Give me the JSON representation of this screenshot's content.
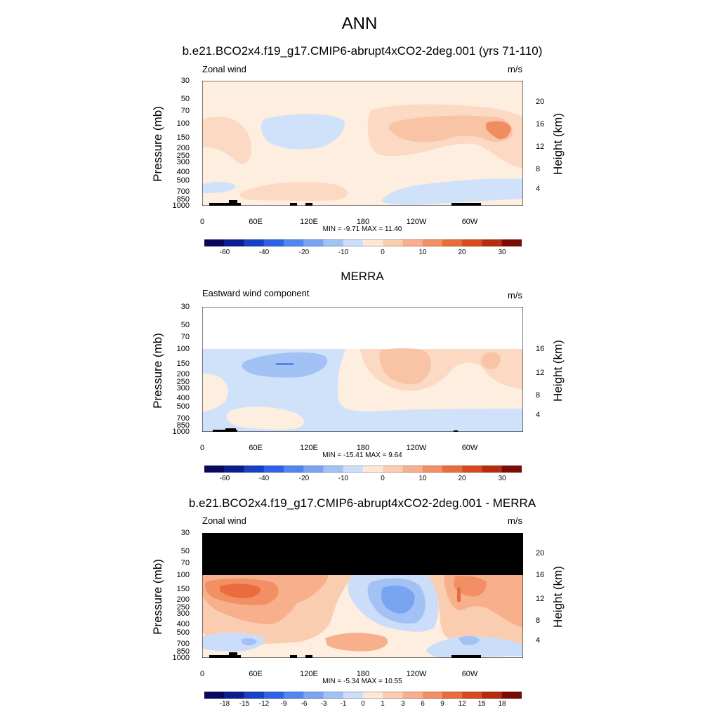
{
  "main_title": "ANN",
  "colors": {
    "levels11": [
      "#e6f0ff",
      "#cfe2f9",
      "#fdeee0",
      "#fcd9c2",
      "#f9c3a6",
      "#f5a883",
      "#f08c5f",
      "#e46c3d"
    ],
    "cb_colors": [
      "#08085e",
      "#0a1f8f",
      "#1740c2",
      "#2f62e6",
      "#4f86f0",
      "#78a4f2",
      "#a2c1f5",
      "#cbddf8",
      "#fde7d6",
      "#fbcdb0",
      "#f7b08b",
      "#f28f64",
      "#ea6c3c",
      "#d94a1f",
      "#b52c10",
      "#7a0c05"
    ]
  },
  "panels": [
    {
      "title": "b.e21.BCO2x4.f19_g17.CMIP6-abrupt4xCO2-2deg.001 (yrs 71-110)",
      "left_label": "Zonal wind",
      "unit": "m/s",
      "ylabel": "Pressure (mb)",
      "ylabel_right": "Height (km)",
      "pressure_ticks": [
        "30",
        "50",
        "70",
        "100",
        "150",
        "200",
        "250",
        "300",
        "400",
        "500",
        "700",
        "850",
        "1000"
      ],
      "height_ticks": [
        "20",
        "16",
        "12",
        "8",
        "4"
      ],
      "lon_ticks": [
        "0",
        "60E",
        "120E",
        "180",
        "120W",
        "60W"
      ],
      "minmax": "MIN =  -9.71  MAX =  11.40",
      "colorbar_labels": [
        "-60",
        "-40",
        "-20",
        "-10",
        "0",
        "10",
        "20",
        "30"
      ]
    },
    {
      "title": "MERRA",
      "left_label": "Eastward wind component",
      "unit": "m/s",
      "ylabel": "Pressure (mb)",
      "ylabel_right": "Height (km)",
      "pressure_ticks": [
        "30",
        "50",
        "70",
        "100",
        "150",
        "200",
        "250",
        "300",
        "400",
        "500",
        "700",
        "850",
        "1000"
      ],
      "height_ticks": [
        "16",
        "12",
        "8",
        "4"
      ],
      "lon_ticks": [
        "0",
        "60E",
        "120E",
        "180",
        "120W",
        "60W"
      ],
      "minmax": "MIN = -15.41  MAX =   9.64",
      "colorbar_labels": [
        "-60",
        "-40",
        "-20",
        "-10",
        "0",
        "10",
        "20",
        "30"
      ]
    },
    {
      "title": "b.e21.BCO2x4.f19_g17.CMIP6-abrupt4xCO2-2deg.001 - MERRA",
      "left_label": "Zonal wind",
      "unit": "m/s",
      "ylabel": "Pressure (mb)",
      "ylabel_right": "Height (km)",
      "pressure_ticks": [
        "30",
        "50",
        "70",
        "100",
        "150",
        "200",
        "250",
        "300",
        "400",
        "500",
        "700",
        "850",
        "1000"
      ],
      "height_ticks": [
        "20",
        "16",
        "12",
        "8",
        "4"
      ],
      "lon_ticks": [
        "0",
        "60E",
        "120E",
        "180",
        "120W",
        "60W"
      ],
      "minmax": "MIN =  -5.34  MAX =  10.55",
      "colorbar_labels": [
        "-18",
        "-15",
        "-12",
        "-9",
        "-6",
        "-3",
        "-1",
        "0",
        "1",
        "3",
        "6",
        "9",
        "12",
        "15",
        "18"
      ]
    }
  ],
  "chart_data": [
    {
      "type": "heatmap",
      "title": "b.e21.BCO2x4.f19_g17.CMIP6-abrupt4xCO2-2deg.001 (yrs 71-110)",
      "subtitle": "Zonal wind",
      "units": "m/s",
      "xlabel": "",
      "ylabel": "Pressure (mb)",
      "ylabel_right": "Height (km)",
      "xlim": [
        "0",
        "360"
      ],
      "ylim": [
        1000,
        30
      ],
      "y_scale": "log",
      "min": -9.71,
      "max": 11.4,
      "contour_levels": [
        -60,
        -40,
        -20,
        -10,
        0,
        10,
        20,
        30
      ],
      "x_ticks": [
        "0",
        "60E",
        "120E",
        "180",
        "120W",
        "60W"
      ],
      "y_ticks": [
        30,
        50,
        70,
        100,
        150,
        200,
        250,
        300,
        400,
        500,
        700,
        850,
        1000
      ]
    },
    {
      "type": "heatmap",
      "title": "MERRA",
      "subtitle": "Eastward wind component",
      "units": "m/s",
      "xlabel": "",
      "ylabel": "Pressure (mb)",
      "ylabel_right": "Height (km)",
      "y_scale": "log",
      "ylim": [
        1000,
        30
      ],
      "min": -15.41,
      "max": 9.64,
      "contour_levels": [
        -60,
        -40,
        -20,
        -10,
        0,
        10,
        20,
        30
      ],
      "x_ticks": [
        "0",
        "60E",
        "120E",
        "180",
        "120W",
        "60W"
      ],
      "y_ticks": [
        30,
        50,
        70,
        100,
        150,
        200,
        250,
        300,
        400,
        500,
        700,
        850,
        1000
      ]
    },
    {
      "type": "heatmap",
      "title": "b.e21.BCO2x4.f19_g17.CMIP6-abrupt4xCO2-2deg.001 - MERRA",
      "subtitle": "Zonal wind",
      "units": "m/s",
      "xlabel": "",
      "ylabel": "Pressure (mb)",
      "ylabel_right": "Height (km)",
      "y_scale": "log",
      "ylim": [
        1000,
        30
      ],
      "min": -5.34,
      "max": 10.55,
      "contour_levels": [
        -18,
        -15,
        -12,
        -9,
        -6,
        -3,
        -1,
        0,
        1,
        3,
        6,
        9,
        12,
        15,
        18
      ],
      "x_ticks": [
        "0",
        "60E",
        "120E",
        "180",
        "120W",
        "60W"
      ],
      "y_ticks": [
        30,
        50,
        70,
        100,
        150,
        200,
        250,
        300,
        400,
        500,
        700,
        850,
        1000
      ]
    }
  ]
}
